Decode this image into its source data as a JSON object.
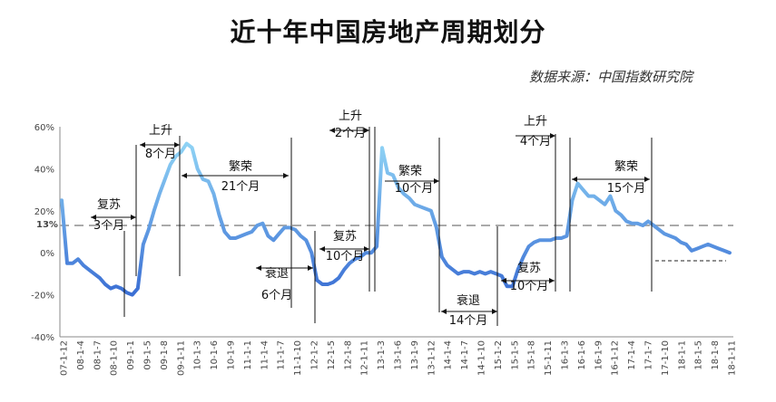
{
  "title": "近十年中国房地产周期划分",
  "source": "数据来源：中国指数研究院",
  "colors": {
    "line_dark": "#3b6fd4",
    "line_light": "#8fd3f5",
    "ref_line": "#aaaaaa"
  },
  "chart_data": {
    "type": "line",
    "title": "近十年中国房地产周期划分",
    "xlabel": "",
    "ylabel": "",
    "ylim": [
      -40,
      60
    ],
    "yticks": [
      "60%",
      "40%",
      "20%",
      "0%",
      "-20%",
      "-40%"
    ],
    "x_tick_labels": [
      "07-1-12",
      "08-1-4",
      "08-1-7",
      "08-1-10",
      "09-1-1",
      "09-1-5",
      "09-1-8",
      "09-1-11",
      "10-1-3",
      "10-1-6",
      "10-1-9",
      "11-1-1",
      "11-1-4",
      "11-1-7",
      "11-1-10",
      "12-1-2",
      "12-1-5",
      "12-1-8",
      "12-1-11",
      "13-1-3",
      "13-1-6",
      "13-1-9",
      "13-1-12",
      "14-1-4",
      "14-1-7",
      "14-1-10",
      "15-1-2",
      "15-1-5",
      "15-1-8",
      "15-1-11",
      "16-1-3",
      "16-1-6",
      "16-1-9",
      "16-1-12",
      "17-1-4",
      "17-1-7",
      "17-1-10",
      "18-1-1",
      "18-1-5",
      "18-1-8",
      "18-1-11"
    ],
    "reference_line": {
      "value": 13,
      "label": "13%"
    },
    "series": [
      {
        "values": [
          25,
          -5,
          -5,
          -3,
          -6,
          -8,
          -10,
          -12,
          -15,
          -17,
          -16,
          -17,
          -19,
          -20,
          -17,
          4,
          11,
          20,
          28,
          35,
          42,
          46,
          48,
          52,
          50,
          40,
          35,
          34,
          28,
          18,
          10,
          7,
          7,
          8,
          9,
          10,
          13,
          14,
          8,
          6,
          9,
          12,
          12,
          11,
          8,
          6,
          0,
          -13,
          -15,
          -15,
          -14,
          -12,
          -8,
          -5,
          -3,
          -2,
          0,
          0,
          3,
          50,
          38,
          37,
          31,
          28,
          26,
          23,
          22,
          21,
          20,
          12,
          -2,
          -6,
          -8,
          -10,
          -9,
          -9,
          -10,
          -9,
          -10,
          -9,
          -10,
          -11,
          -16,
          -16,
          -8,
          -2,
          3,
          5,
          6,
          6,
          6,
          7,
          7,
          8,
          25,
          33,
          30,
          27,
          27,
          25,
          23,
          27,
          20,
          18,
          15,
          14,
          14,
          13,
          15,
          13,
          11,
          9,
          8,
          7,
          5,
          4,
          1,
          2,
          3,
          4,
          3,
          2,
          1,
          0
        ]
      }
    ],
    "annotations": [
      {
        "label": "复苏",
        "sub": "3个月"
      },
      {
        "label": "上升",
        "sub": "8个月"
      },
      {
        "label": "繁荣",
        "sub": "21个月"
      },
      {
        "label": "衰退",
        "sub": "6个月"
      },
      {
        "label": "上升",
        "sub": "2个月"
      },
      {
        "label": "复苏",
        "sub": "10个月"
      },
      {
        "label": "繁荣",
        "sub": "10个月"
      },
      {
        "label": "衰退",
        "sub": "14个月"
      },
      {
        "label": "复苏",
        "sub": "10个月"
      },
      {
        "label": "上升",
        "sub": "4个月"
      },
      {
        "label": "繁荣",
        "sub": "15个月"
      }
    ]
  }
}
